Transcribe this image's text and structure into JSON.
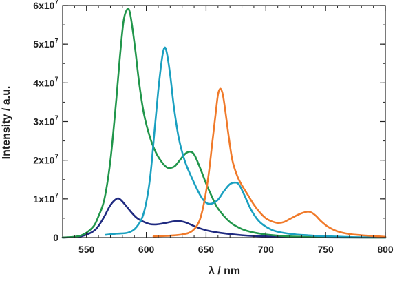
{
  "chart_data": {
    "type": "line",
    "xlabel": "λ / nm",
    "ylabel": "Intensity / a.u.",
    "xlim": [
      530,
      800
    ],
    "ylim": [
      0,
      60000000.0
    ],
    "x_ticks": [
      {
        "value": 550,
        "label": "550"
      },
      {
        "value": 600,
        "label": "600"
      },
      {
        "value": 650,
        "label": "650"
      },
      {
        "value": 700,
        "label": "700"
      },
      {
        "value": 750,
        "label": "750"
      },
      {
        "value": 800,
        "label": "800"
      }
    ],
    "y_ticks": [
      {
        "value": 0,
        "mantissa": "0",
        "exp": ""
      },
      {
        "value": 10000000.0,
        "mantissa": "1x10",
        "exp": "7"
      },
      {
        "value": 20000000.0,
        "mantissa": "2x10",
        "exp": "7"
      },
      {
        "value": 30000000.0,
        "mantissa": "3x10",
        "exp": "7"
      },
      {
        "value": 40000000.0,
        "mantissa": "4x10",
        "exp": "7"
      },
      {
        "value": 50000000.0,
        "mantissa": "5x10",
        "exp": "7"
      },
      {
        "value": 60000000.0,
        "mantissa": "6x10",
        "exp": "7"
      }
    ],
    "x_minor_step": 10,
    "y_minor_step": 5000000.0,
    "grid": false,
    "legend": "none",
    "series": [
      {
        "color": "#1f2a80",
        "x": [
          530,
          545,
          555,
          560,
          565,
          570,
          575,
          578,
          582,
          587,
          592,
          597,
          603,
          608,
          613,
          618,
          623,
          627,
          632,
          637,
          642,
          650,
          660,
          670,
          680,
          690,
          700,
          710,
          720,
          730,
          740,
          750,
          760,
          770,
          780,
          790,
          800
        ],
        "y": [
          0,
          300000.0,
          1500000.0,
          3000000.0,
          5500000.0,
          8400000.0,
          10000000.0,
          9900000.0,
          8600000.0,
          6700000.0,
          5100000.0,
          4200000.0,
          3500000.0,
          3400000.0,
          3600000.0,
          3900000.0,
          4200000.0,
          4300000.0,
          4000000.0,
          3400000.0,
          2700000.0,
          1900000.0,
          1300000.0,
          900000.0,
          600000.0,
          400000.0,
          300000.0,
          200000.0,
          150000.0,
          100000.0,
          80000.0,
          50000.0,
          40000.0,
          30000.0,
          20000.0,
          10000.0,
          0
        ]
      },
      {
        "color": "#21964b",
        "x": [
          530,
          545,
          555,
          560,
          565,
          570,
          575,
          578,
          581,
          584,
          586,
          588,
          591,
          594,
          598,
          603,
          608,
          613,
          617,
          620,
          624,
          628,
          632,
          636,
          640,
          645,
          650,
          655,
          660,
          670,
          680,
          690,
          700,
          710,
          720,
          730,
          740,
          750,
          760,
          770,
          780,
          790,
          800
        ],
        "y": [
          0,
          500000.0,
          2600000.0,
          5500000.0,
          10000000.0,
          20000000.0,
          36000000.0,
          47000000.0,
          56000000.0,
          59000000.0,
          58500000.0,
          55000000.0,
          48000000.0,
          40000000.0,
          32000000.0,
          26000000.0,
          22000000.0,
          19500000.0,
          18200000.0,
          18000000.0,
          18500000.0,
          20000000.0,
          21500000.0,
          22200000.0,
          21500000.0,
          18000000.0,
          14000000.0,
          10500000.0,
          7500000.0,
          4000000.0,
          2200000.0,
          1300000.0,
          800000.0,
          500000.0,
          300000.0,
          200000.0,
          100000.0,
          80000.0,
          50000.0,
          40000.0,
          30000.0,
          20000.0,
          0
        ]
      },
      {
        "color": "#1aa0c0",
        "x": [
          566,
          575,
          585,
          592,
          598,
          603,
          607,
          610,
          613,
          615,
          617,
          620,
          623,
          627,
          632,
          638,
          645,
          650,
          655,
          660,
          665,
          670,
          675,
          678,
          682,
          688,
          695,
          705,
          715,
          725,
          735,
          745,
          755,
          765,
          775,
          785,
          795,
          800
        ],
        "y": [
          700000.0,
          1000000.0,
          1300000.0,
          2800000.0,
          6500000.0,
          15000000.0,
          28000000.0,
          38000000.0,
          46000000.0,
          49000000.0,
          48000000.0,
          42000000.0,
          34000000.0,
          26000000.0,
          20000000.0,
          15500000.0,
          11000000.0,
          9000000.0,
          8800000.0,
          9800000.0,
          12000000.0,
          13800000.0,
          14200000.0,
          13500000.0,
          11000000.0,
          7000000.0,
          4000000.0,
          2000000.0,
          1200000.0,
          800000.0,
          600000.0,
          400000.0,
          300000.0,
          200000.0,
          100000.0,
          80000.0,
          50000.0,
          0
        ]
      },
      {
        "color": "#f07a2a",
        "x": [
          606,
          620,
          630,
          638,
          644,
          648,
          652,
          655,
          658,
          660,
          662,
          664,
          666,
          669,
          672,
          676,
          680,
          685,
          690,
          695,
          700,
          705,
          710,
          715,
          720,
          725,
          730,
          735,
          738,
          742,
          746,
          752,
          760,
          770,
          780,
          790,
          800
        ],
        "y": [
          300000.0,
          500000.0,
          800000.0,
          1600000.0,
          4000000.0,
          8500000.0,
          16000000.0,
          24000000.0,
          32000000.0,
          37000000.0,
          38500000.0,
          37000000.0,
          33000000.0,
          26000000.0,
          20000000.0,
          16000000.0,
          13500000.0,
          11000000.0,
          8500000.0,
          6500000.0,
          5000000.0,
          4200000.0,
          3800000.0,
          4000000.0,
          4800000.0,
          5600000.0,
          6300000.0,
          6700000.0,
          6500000.0,
          5600000.0,
          4300000.0,
          2800000.0,
          1600000.0,
          900000.0,
          600000.0,
          400000.0,
          200000.0
        ]
      }
    ]
  }
}
